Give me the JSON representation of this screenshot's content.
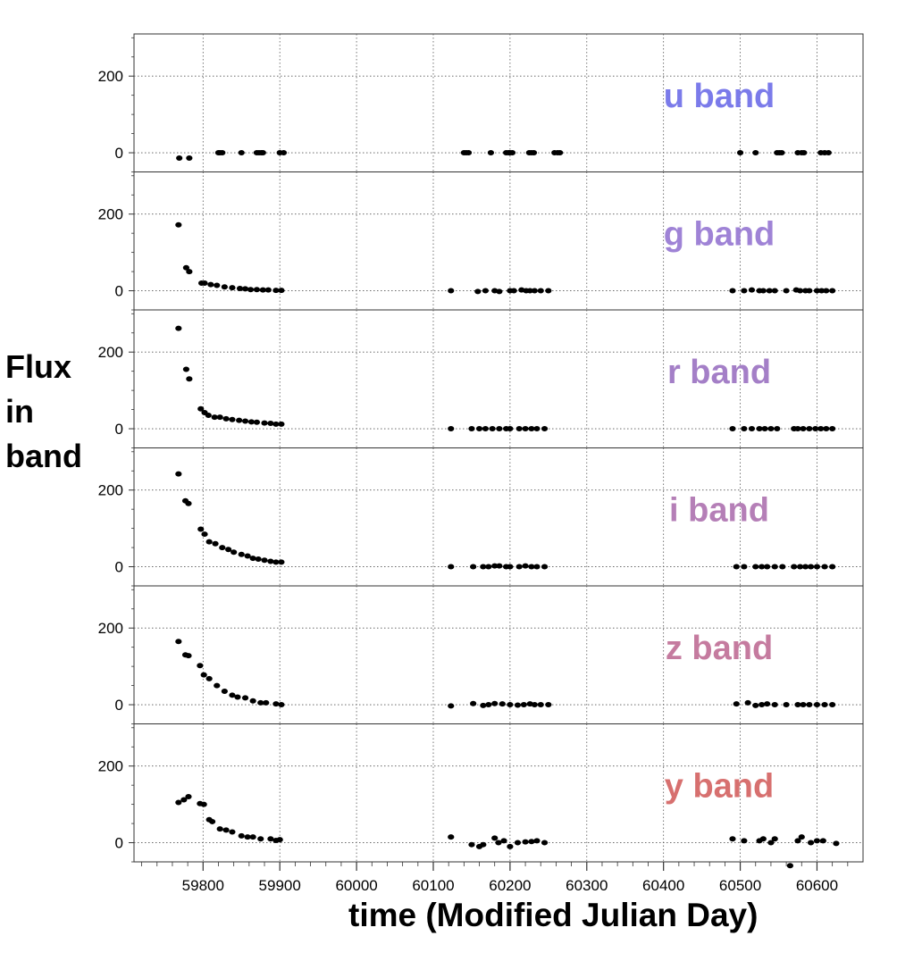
{
  "chart_data": {
    "type": "scatter",
    "xlabel": "time (Modified Julian Day)",
    "ylabel": "Flux\nin\nband",
    "xlim": [
      59710,
      60660
    ],
    "ylim": [
      -50,
      310
    ],
    "x_ticks": [
      59800,
      59900,
      60000,
      60100,
      60200,
      60300,
      60400,
      60500,
      60600
    ],
    "y_ticks": [
      0,
      200
    ],
    "grid": true,
    "panels": [
      {
        "name": "u band",
        "color": "#7b7bea",
        "points": [
          [
            59769,
            -14
          ],
          [
            59782,
            -14
          ],
          [
            59820,
            0
          ],
          [
            59822,
            0
          ],
          [
            59825,
            0
          ],
          [
            59850,
            0
          ],
          [
            59870,
            0
          ],
          [
            59873,
            0
          ],
          [
            59876,
            0
          ],
          [
            59878,
            0
          ],
          [
            59900,
            0
          ],
          [
            59905,
            0
          ],
          [
            60140,
            0
          ],
          [
            60143,
            0
          ],
          [
            60146,
            0
          ],
          [
            60175,
            0
          ],
          [
            60195,
            0
          ],
          [
            60198,
            0
          ],
          [
            60200,
            0
          ],
          [
            60203,
            0
          ],
          [
            60225,
            0
          ],
          [
            60228,
            0
          ],
          [
            60231,
            0
          ],
          [
            60258,
            0
          ],
          [
            60262,
            0
          ],
          [
            60265,
            0
          ],
          [
            60500,
            0
          ],
          [
            60520,
            0
          ],
          [
            60548,
            0
          ],
          [
            60551,
            0
          ],
          [
            60554,
            0
          ],
          [
            60575,
            0
          ],
          [
            60580,
            0
          ],
          [
            60583,
            0
          ],
          [
            60605,
            0
          ],
          [
            60610,
            0
          ],
          [
            60615,
            0
          ]
        ]
      },
      {
        "name": "g band",
        "color": "#9f83d6",
        "points": [
          [
            59768,
            172
          ],
          [
            59778,
            60
          ],
          [
            59782,
            50
          ],
          [
            59798,
            20
          ],
          [
            59802,
            20
          ],
          [
            59810,
            16
          ],
          [
            59818,
            14
          ],
          [
            59828,
            10
          ],
          [
            59838,
            8
          ],
          [
            59848,
            6
          ],
          [
            59855,
            5
          ],
          [
            59862,
            3
          ],
          [
            59870,
            3
          ],
          [
            59878,
            2
          ],
          [
            59885,
            2
          ],
          [
            59895,
            1
          ],
          [
            59902,
            1
          ],
          [
            60123,
            0
          ],
          [
            60158,
            -2
          ],
          [
            60168,
            0
          ],
          [
            60180,
            0
          ],
          [
            60186,
            -2
          ],
          [
            60200,
            0
          ],
          [
            60205,
            0
          ],
          [
            60215,
            2
          ],
          [
            60221,
            0
          ],
          [
            60226,
            0
          ],
          [
            60232,
            0
          ],
          [
            60240,
            0
          ],
          [
            60250,
            0
          ],
          [
            60490,
            0
          ],
          [
            60505,
            0
          ],
          [
            60515,
            2
          ],
          [
            60525,
            0
          ],
          [
            60530,
            0
          ],
          [
            60538,
            0
          ],
          [
            60545,
            0
          ],
          [
            60560,
            0
          ],
          [
            60573,
            2
          ],
          [
            60578,
            0
          ],
          [
            60585,
            0
          ],
          [
            60590,
            0
          ],
          [
            60600,
            0
          ],
          [
            60606,
            0
          ],
          [
            60612,
            0
          ],
          [
            60620,
            0
          ]
        ]
      },
      {
        "name": "r band",
        "color": "#a47fc7",
        "points": [
          [
            59768,
            262
          ],
          [
            59778,
            155
          ],
          [
            59782,
            130
          ],
          [
            59797,
            52
          ],
          [
            59802,
            42
          ],
          [
            59807,
            35
          ],
          [
            59815,
            30
          ],
          [
            59822,
            30
          ],
          [
            59830,
            26
          ],
          [
            59838,
            24
          ],
          [
            59847,
            22
          ],
          [
            59855,
            20
          ],
          [
            59863,
            18
          ],
          [
            59870,
            17
          ],
          [
            59880,
            15
          ],
          [
            59888,
            14
          ],
          [
            59895,
            12
          ],
          [
            59902,
            12
          ],
          [
            60123,
            0
          ],
          [
            60150,
            0
          ],
          [
            60160,
            0
          ],
          [
            60168,
            0
          ],
          [
            60177,
            0
          ],
          [
            60186,
            0
          ],
          [
            60195,
            0
          ],
          [
            60200,
            0
          ],
          [
            60212,
            0
          ],
          [
            60220,
            0
          ],
          [
            60228,
            0
          ],
          [
            60235,
            0
          ],
          [
            60245,
            0
          ],
          [
            60490,
            0
          ],
          [
            60505,
            0
          ],
          [
            60515,
            0
          ],
          [
            60525,
            0
          ],
          [
            60532,
            0
          ],
          [
            60540,
            0
          ],
          [
            60548,
            0
          ],
          [
            60570,
            0
          ],
          [
            60575,
            0
          ],
          [
            60582,
            0
          ],
          [
            60590,
            0
          ],
          [
            60598,
            0
          ],
          [
            60605,
            0
          ],
          [
            60612,
            0
          ],
          [
            60620,
            0
          ]
        ]
      },
      {
        "name": "i band",
        "color": "#b57fb7",
        "points": [
          [
            59768,
            242
          ],
          [
            59777,
            172
          ],
          [
            59781,
            165
          ],
          [
            59797,
            98
          ],
          [
            59802,
            85
          ],
          [
            59808,
            65
          ],
          [
            59816,
            60
          ],
          [
            59825,
            50
          ],
          [
            59833,
            45
          ],
          [
            59840,
            38
          ],
          [
            59850,
            32
          ],
          [
            59858,
            28
          ],
          [
            59865,
            22
          ],
          [
            59872,
            20
          ],
          [
            59880,
            17
          ],
          [
            59888,
            14
          ],
          [
            59895,
            12
          ],
          [
            59902,
            12
          ],
          [
            60123,
            0
          ],
          [
            60152,
            0
          ],
          [
            60165,
            0
          ],
          [
            60172,
            0
          ],
          [
            60180,
            2
          ],
          [
            60186,
            2
          ],
          [
            60195,
            0
          ],
          [
            60200,
            0
          ],
          [
            60212,
            0
          ],
          [
            60220,
            2
          ],
          [
            60228,
            0
          ],
          [
            60235,
            0
          ],
          [
            60245,
            0
          ],
          [
            60495,
            0
          ],
          [
            60505,
            0
          ],
          [
            60520,
            0
          ],
          [
            60528,
            0
          ],
          [
            60535,
            0
          ],
          [
            60545,
            0
          ],
          [
            60555,
            0
          ],
          [
            60570,
            0
          ],
          [
            60578,
            0
          ],
          [
            60585,
            0
          ],
          [
            60592,
            0
          ],
          [
            60600,
            0
          ],
          [
            60610,
            0
          ],
          [
            60620,
            0
          ]
        ]
      },
      {
        "name": "z band",
        "color": "#c57b9f",
        "points": [
          [
            59768,
            165
          ],
          [
            59777,
            130
          ],
          [
            59781,
            128
          ],
          [
            59796,
            102
          ],
          [
            59801,
            78
          ],
          [
            59808,
            68
          ],
          [
            59818,
            50
          ],
          [
            59828,
            35
          ],
          [
            59838,
            25
          ],
          [
            59845,
            20
          ],
          [
            59855,
            18
          ],
          [
            59865,
            10
          ],
          [
            59875,
            5
          ],
          [
            59882,
            5
          ],
          [
            59895,
            2
          ],
          [
            59902,
            0
          ],
          [
            60123,
            -3
          ],
          [
            60152,
            3
          ],
          [
            60165,
            -2
          ],
          [
            60172,
            0
          ],
          [
            60180,
            3
          ],
          [
            60190,
            2
          ],
          [
            60200,
            0
          ],
          [
            60210,
            -1
          ],
          [
            60218,
            0
          ],
          [
            60226,
            2
          ],
          [
            60232,
            0
          ],
          [
            60240,
            0
          ],
          [
            60250,
            0
          ],
          [
            60495,
            2
          ],
          [
            60510,
            5
          ],
          [
            60520,
            -2
          ],
          [
            60528,
            0
          ],
          [
            60535,
            2
          ],
          [
            60545,
            0
          ],
          [
            60560,
            0
          ],
          [
            60575,
            0
          ],
          [
            60582,
            0
          ],
          [
            60590,
            0
          ],
          [
            60600,
            0
          ],
          [
            60610,
            0
          ],
          [
            60620,
            0
          ]
        ]
      },
      {
        "name": "y band",
        "color": "#d7706f",
        "points": [
          [
            59768,
            105
          ],
          [
            59775,
            112
          ],
          [
            59781,
            120
          ],
          [
            59796,
            102
          ],
          [
            59801,
            100
          ],
          [
            59808,
            60
          ],
          [
            59812,
            55
          ],
          [
            59822,
            36
          ],
          [
            59830,
            33
          ],
          [
            59838,
            28
          ],
          [
            59850,
            18
          ],
          [
            59858,
            15
          ],
          [
            59865,
            15
          ],
          [
            59875,
            10
          ],
          [
            59888,
            10
          ],
          [
            59895,
            6
          ],
          [
            59900,
            8
          ],
          [
            60123,
            15
          ],
          [
            60150,
            -5
          ],
          [
            60160,
            -10
          ],
          [
            60165,
            -5
          ],
          [
            60180,
            12
          ],
          [
            60185,
            0
          ],
          [
            60192,
            5
          ],
          [
            60200,
            -10
          ],
          [
            60210,
            0
          ],
          [
            60220,
            2
          ],
          [
            60228,
            3
          ],
          [
            60235,
            5
          ],
          [
            60245,
            0
          ],
          [
            60490,
            10
          ],
          [
            60505,
            5
          ],
          [
            60525,
            5
          ],
          [
            60530,
            10
          ],
          [
            60540,
            0
          ],
          [
            60545,
            10
          ],
          [
            60565,
            -60
          ],
          [
            60575,
            5
          ],
          [
            60580,
            15
          ],
          [
            60592,
            0
          ],
          [
            60600,
            5
          ],
          [
            60608,
            5
          ],
          [
            60625,
            -2
          ]
        ]
      }
    ]
  }
}
